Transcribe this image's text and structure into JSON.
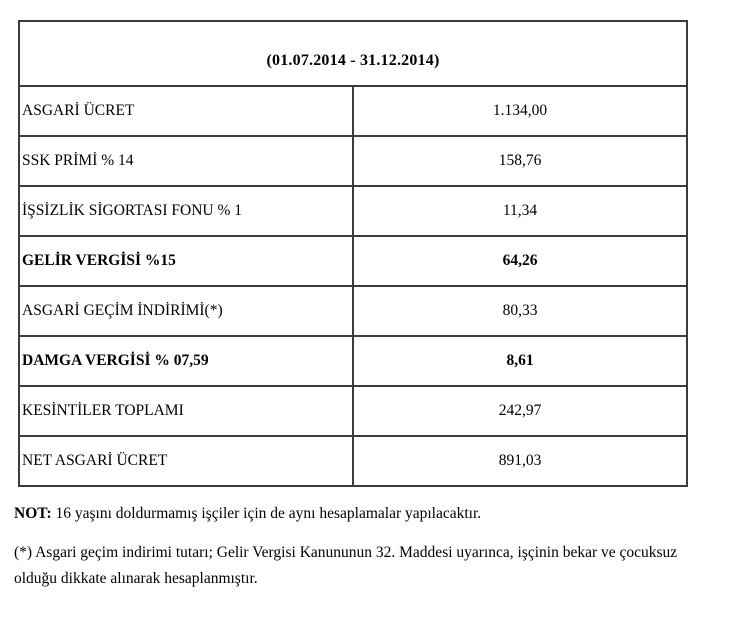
{
  "table": {
    "header": "(01.07.2014 - 31.12.2014)",
    "rows": [
      {
        "label": "ASGARİ ÜCRET",
        "value": "1.134,00",
        "bold": false
      },
      {
        "label": "SSK PRİMİ % 14",
        "value": "158,76",
        "bold": false
      },
      {
        "label": "İŞSİZLİK SİGORTASI FONU % 1",
        "value": "11,34",
        "bold": false
      },
      {
        "label": "GELİR VERGİSİ %15",
        "value": "64,26",
        "bold": true
      },
      {
        "label": "ASGARİ GEÇİM İNDİRİMİ(*)",
        "value": "80,33",
        "bold": false
      },
      {
        "label": "DAMGA VERGİSİ % 07,59",
        "value": "8,61",
        "bold": true
      },
      {
        "label": "KESİNTİLER TOPLAMI",
        "value": "242,97",
        "bold": false
      },
      {
        "label": "NET ASGARİ ÜCRET",
        "value": "891,03",
        "bold": false
      }
    ]
  },
  "notes": {
    "note_label": "NOT:",
    "note_text": " 16 yaşını doldurmamış işçiler için de aynı hesaplamalar yapılacaktır.",
    "footnote": "(*) Asgari geçim indirimi tutarı; Gelir Vergisi Kanununun 32. Maddesi uyarınca, işçinin bekar ve çocuksuz olduğu dikkate alınarak hesaplanmıştır."
  },
  "colors": {
    "border": "#3c3c3c",
    "text": "#000000",
    "background": "#ffffff"
  }
}
